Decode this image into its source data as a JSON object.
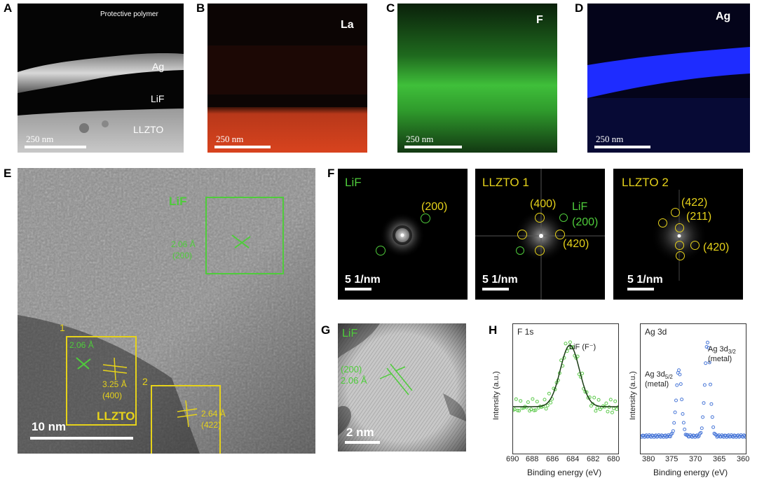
{
  "panel_labels": {
    "A": "A",
    "B": "B",
    "C": "C",
    "D": "D",
    "E": "E",
    "F": "F",
    "G": "G",
    "H": "H"
  },
  "panel_a": {
    "protective": "Protective polymer",
    "ag": "Ag",
    "lif": "LiF",
    "llzto": "LLZTO",
    "scale": "250 nm"
  },
  "panel_b": {
    "element": "La",
    "scale": "250 nm"
  },
  "panel_c": {
    "element": "F",
    "scale": "250 nm"
  },
  "panel_d": {
    "element": "Ag",
    "scale": "250 nm"
  },
  "panel_e": {
    "lif_label": "LiF",
    "lif_d": "2.06 Å",
    "lif_hkl": "(200)",
    "box1": "1",
    "box1_d1": "2.06 Å",
    "box1_d2": "3.25 Å",
    "box1_hkl": "(400)",
    "box2": "2",
    "box2_d": "2.64 Å",
    "box2_hkl": "(422)",
    "llzto": "LLZTO",
    "scale": "10 nm"
  },
  "panel_f": {
    "lif": {
      "title": "LiF",
      "spot": "(200)",
      "scale": "5 1/nm"
    },
    "llzto1": {
      "title": "LLZTO 1",
      "s1": "(400)",
      "s2": "(420)",
      "lif": "LiF",
      "lif_hkl": "(200)",
      "scale": "5 1/nm"
    },
    "llzto2": {
      "title": "LLZTO 2",
      "s1": "(422)",
      "s2": "(211)",
      "s3": "(420)",
      "scale": "5 1/nm"
    }
  },
  "panel_g": {
    "title": "LiF",
    "hkl": "(200)",
    "d": "2.06 Å",
    "scale": "2 nm"
  },
  "panel_h": {
    "f1s": {
      "title": "F 1s",
      "peak": "LiF (F⁻)",
      "ylabel": "Intensity (a.u.)",
      "xlabel": "Binding energy (eV)",
      "xticks": [
        "690",
        "688",
        "686",
        "684",
        "682",
        "680"
      ]
    },
    "ag3d": {
      "title": "Ag 3d",
      "peak1a": "Ag 3d",
      "peak1b": "5/2",
      "peak1c": "(metal)",
      "peak2a": "Ag 3d",
      "peak2b": "3/2",
      "peak2c": "(metal)",
      "ylabel": "Intensity (a.u.)",
      "xlabel": "Binding energy (eV)",
      "xticks": [
        "380",
        "375",
        "370",
        "365",
        "360"
      ]
    }
  },
  "colors": {
    "green": "#4fcc3b",
    "yellow": "#e6d21a",
    "la": "#d8431e",
    "f": "#3fbf3a",
    "ag": "#1e2cff",
    "xps_green": "#5cc94b",
    "xps_blue": "#4a78d8"
  },
  "chart_data": [
    {
      "type": "line",
      "title": "F 1s",
      "xlabel": "Binding energy (eV)",
      "ylabel": "Intensity (a.u.)",
      "xlim": [
        690,
        680
      ],
      "series": [
        {
          "name": "LiF (F⁻)",
          "peak_center": 684.6
        }
      ]
    },
    {
      "type": "line",
      "title": "Ag 3d",
      "xlabel": "Binding energy (eV)",
      "ylabel": "Intensity (a.u.)",
      "xlim": [
        382,
        360
      ],
      "series": [
        {
          "name": "Ag 3d5/2 (metal)",
          "peak_center": 374.0
        },
        {
          "name": "Ag 3d3/2 (metal)",
          "peak_center": 368.0
        }
      ]
    }
  ]
}
